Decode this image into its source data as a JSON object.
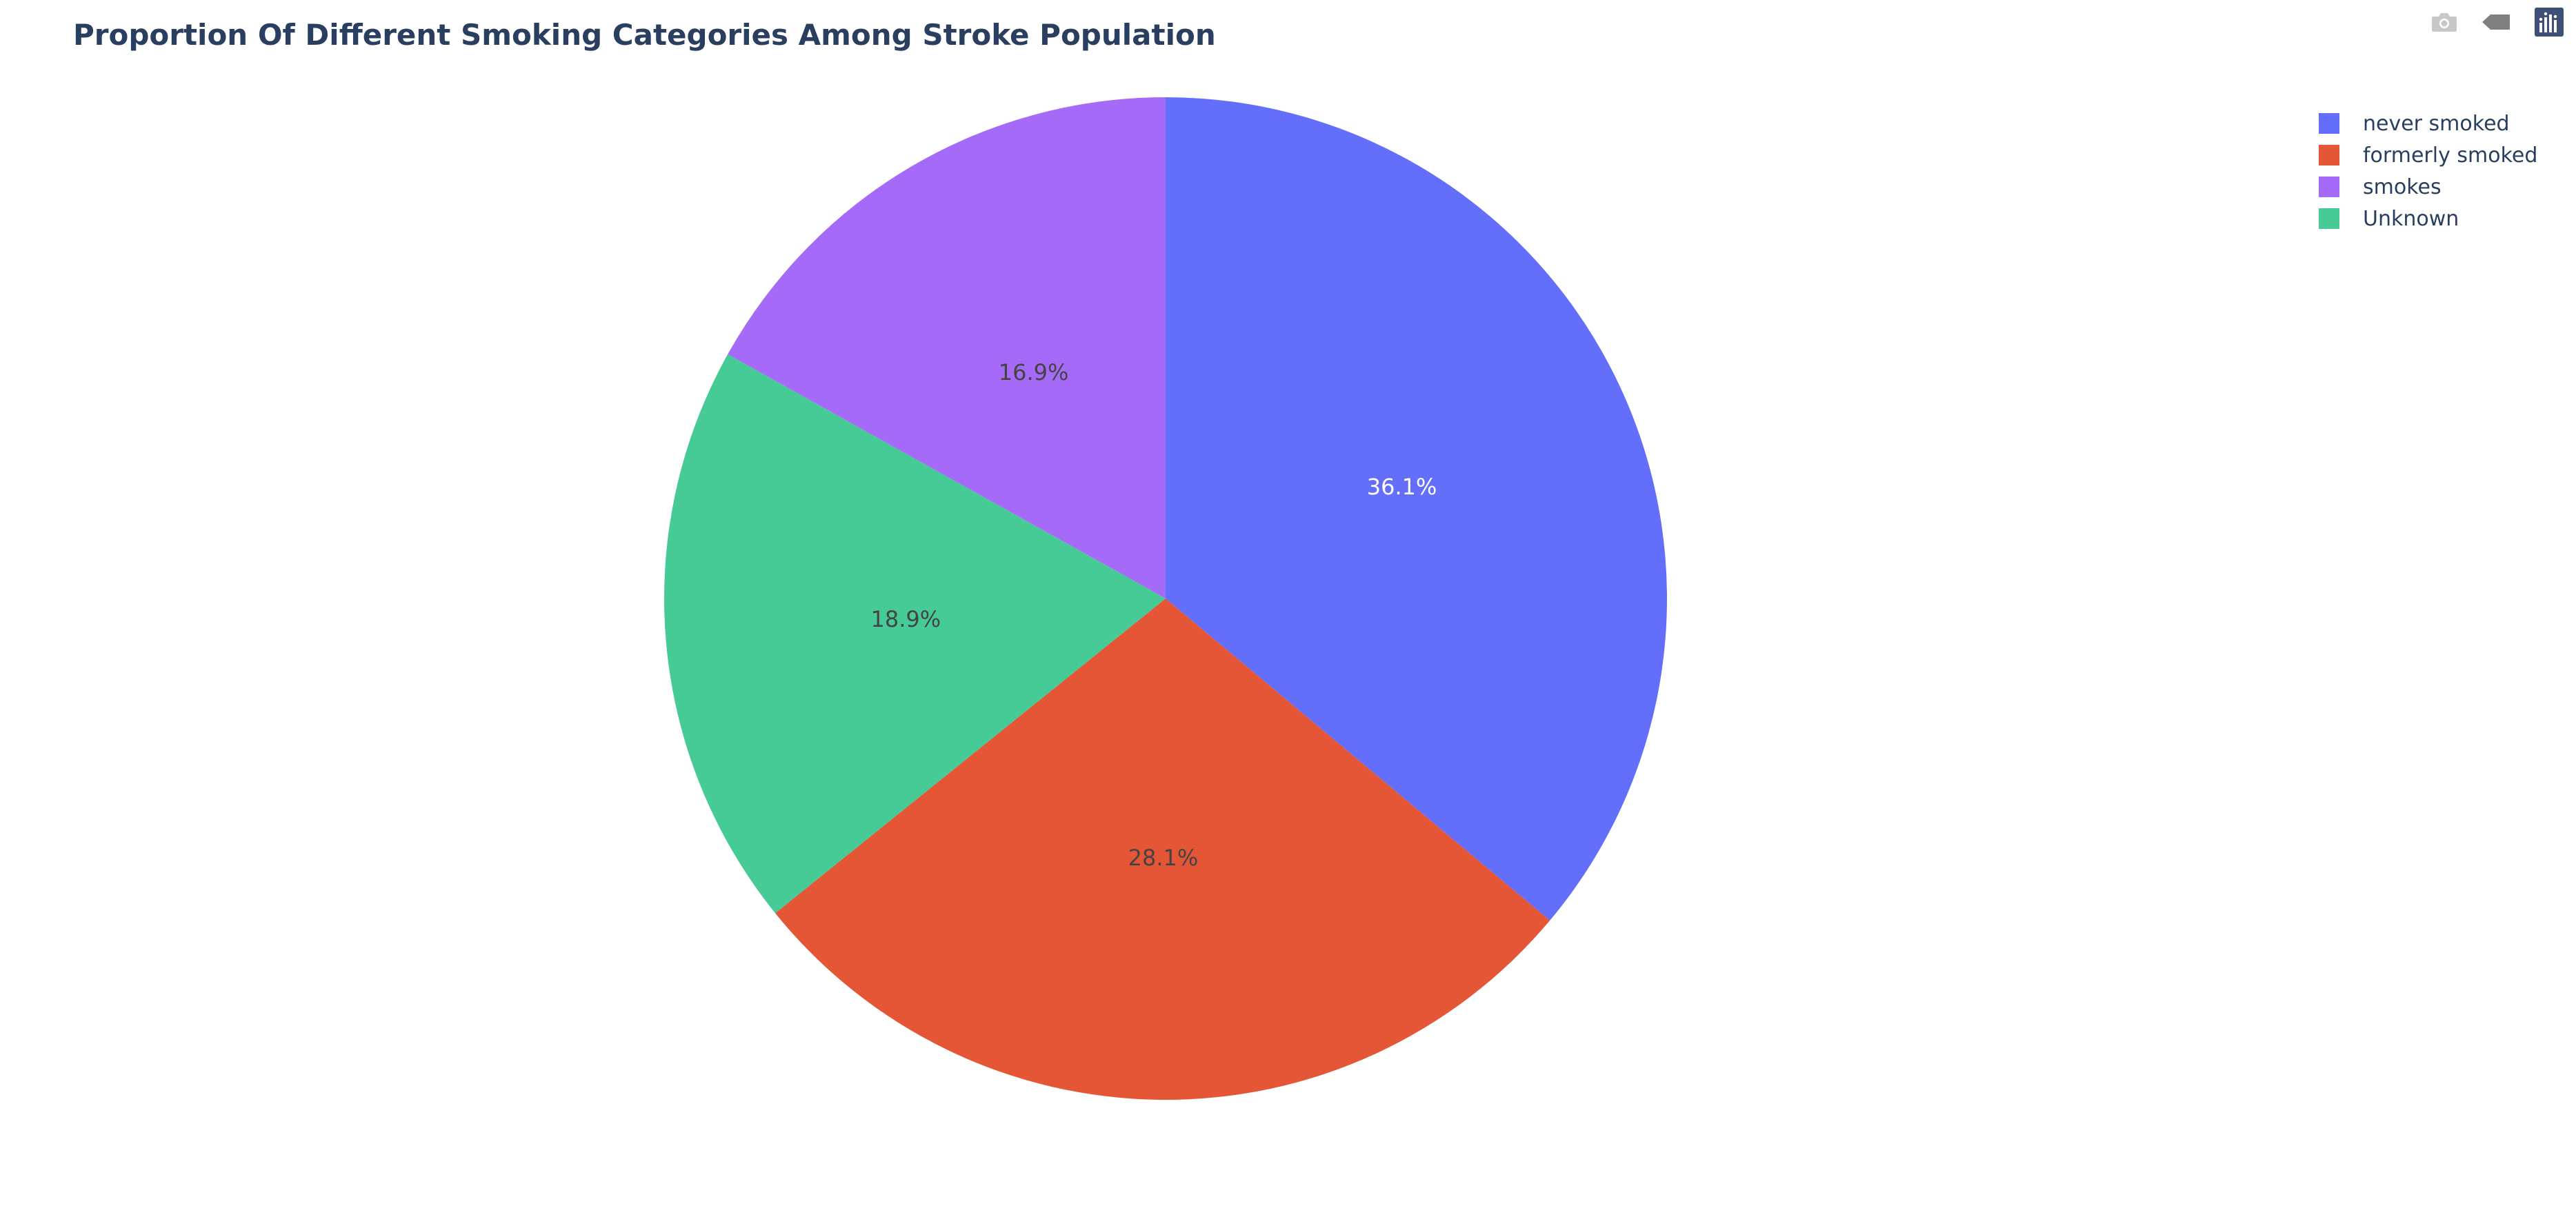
{
  "chart_data": {
    "type": "pie",
    "title": "Proportion Of Different Smoking Categories Among Stroke Population",
    "labels": [
      "never smoked",
      "formerly smoked",
      "Unknown",
      "smokes"
    ],
    "values": [
      36.1,
      28.1,
      18.9,
      16.9
    ],
    "value_labels": [
      "36.1%",
      "28.1%",
      "18.9%",
      "16.9%"
    ],
    "colors": [
      "#636efa",
      "#e45635",
      "#46cb96",
      "#a56af8"
    ],
    "label_text_colors": [
      "#ffffff",
      "#444444",
      "#444444",
      "#444444"
    ],
    "legend_order": [
      0,
      1,
      3,
      2
    ],
    "legend_placement": "top-right",
    "direction": "clockwise",
    "start": "top"
  },
  "modebar": {
    "icons": [
      "camera-icon",
      "tag-icon",
      "plotly-logo-icon"
    ],
    "colors": {
      "camera": "#c8c8c8",
      "tag": "#808080",
      "logo": "#3f4f75"
    }
  }
}
